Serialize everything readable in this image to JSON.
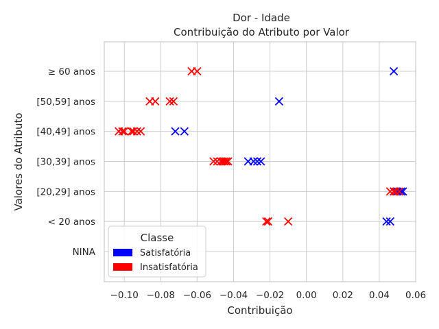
{
  "chart_data": {
    "type": "scatter",
    "title": "Dor - Idade",
    "subtitle": "Contribuição do Atributo por Valor",
    "xlabel": "Contribuição",
    "ylabel": "Valores do Atributo",
    "xlim": [
      -0.111,
      0.06
    ],
    "xticks": [
      -0.1,
      -0.08,
      -0.06,
      -0.04,
      -0.02,
      0.0,
      0.02,
      0.04,
      0.06
    ],
    "xtick_labels": [
      "−0.10",
      "−0.08",
      "−0.06",
      "−0.04",
      "−0.02",
      "0.00",
      "0.02",
      "0.04",
      "0.06"
    ],
    "categories": [
      "NINA",
      "< 20 anos",
      "[20,29] anos",
      "[30,39] anos",
      "[40,49] anos",
      "[50,59] anos",
      "≥ 60 anos"
    ],
    "grid": true,
    "marker": "x",
    "legend": {
      "title": "Classe",
      "placement": "lower-left",
      "entries": [
        {
          "label": "Satisfatória",
          "color": "#0000ff"
        },
        {
          "label": "Insatisfatória",
          "color": "#ff0000"
        }
      ]
    },
    "series": [
      {
        "name": "Satisfatória",
        "color": "#0000ff",
        "points": [
          {
            "x": 0.048,
            "y": "≥ 60 anos"
          },
          {
            "x": -0.015,
            "y": "[50,59] anos"
          },
          {
            "x": -0.072,
            "y": "[40,49] anos"
          },
          {
            "x": -0.067,
            "y": "[40,49] anos"
          },
          {
            "x": -0.032,
            "y": "[30,39] anos"
          },
          {
            "x": -0.029,
            "y": "[30,39] anos"
          },
          {
            "x": -0.027,
            "y": "[30,39] anos"
          },
          {
            "x": -0.025,
            "y": "[30,39] anos"
          },
          {
            "x": 0.048,
            "y": "[20,29] anos"
          },
          {
            "x": 0.05,
            "y": "[20,29] anos"
          },
          {
            "x": 0.052,
            "y": "[20,29] anos"
          },
          {
            "x": 0.053,
            "y": "[20,29] anos"
          },
          {
            "x": 0.044,
            "y": "< 20 anos"
          },
          {
            "x": 0.046,
            "y": "< 20 anos"
          }
        ]
      },
      {
        "name": "Insatisfatória",
        "color": "#ff0000",
        "points": [
          {
            "x": -0.063,
            "y": "≥ 60 anos"
          },
          {
            "x": -0.06,
            "y": "≥ 60 anos"
          },
          {
            "x": -0.086,
            "y": "[50,59] anos"
          },
          {
            "x": -0.083,
            "y": "[50,59] anos"
          },
          {
            "x": -0.075,
            "y": "[50,59] anos"
          },
          {
            "x": -0.073,
            "y": "[50,59] anos"
          },
          {
            "x": -0.103,
            "y": "[40,49] anos"
          },
          {
            "x": -0.101,
            "y": "[40,49] anos"
          },
          {
            "x": -0.1,
            "y": "[40,49] anos"
          },
          {
            "x": -0.096,
            "y": "[40,49] anos"
          },
          {
            "x": -0.095,
            "y": "[40,49] anos"
          },
          {
            "x": -0.093,
            "y": "[40,49] anos"
          },
          {
            "x": -0.091,
            "y": "[40,49] anos"
          },
          {
            "x": -0.051,
            "y": "[30,39] anos"
          },
          {
            "x": -0.049,
            "y": "[30,39] anos"
          },
          {
            "x": -0.047,
            "y": "[30,39] anos"
          },
          {
            "x": -0.046,
            "y": "[30,39] anos"
          },
          {
            "x": -0.045,
            "y": "[30,39] anos"
          },
          {
            "x": -0.044,
            "y": "[30,39] anos"
          },
          {
            "x": -0.043,
            "y": "[30,39] anos"
          },
          {
            "x": 0.046,
            "y": "[20,29] anos"
          },
          {
            "x": 0.048,
            "y": "[20,29] anos"
          },
          {
            "x": 0.049,
            "y": "[20,29] anos"
          },
          {
            "x": 0.051,
            "y": "[20,29] anos"
          },
          {
            "x": -0.022,
            "y": "< 20 anos"
          },
          {
            "x": -0.021,
            "y": "< 20 anos"
          },
          {
            "x": -0.01,
            "y": "< 20 anos"
          }
        ]
      }
    ]
  }
}
